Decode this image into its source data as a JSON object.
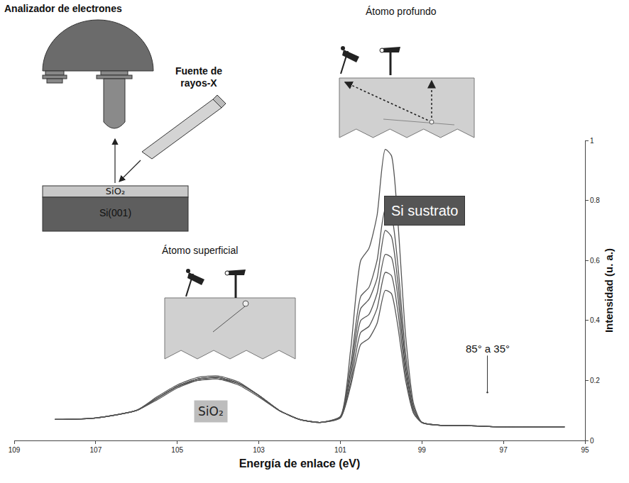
{
  "chart_data": {
    "type": "line",
    "x_label": "Energía de enlace (eV)",
    "y_label": "Intensidad (u. a.)",
    "x": [
      108,
      107,
      106,
      105.5,
      105,
      104.5,
      104,
      103.5,
      103,
      102.5,
      102,
      101.5,
      101,
      100.75,
      100.5,
      100.3,
      100.1,
      99.9,
      99.75,
      99.6,
      99.4,
      99.2,
      99,
      98.5,
      98,
      97,
      96,
      95.5
    ],
    "series": [
      {
        "values": [
          0.07,
          0.075,
          0.1,
          0.14,
          0.18,
          0.205,
          0.21,
          0.19,
          0.15,
          0.1,
          0.07,
          0.06,
          0.08,
          0.3,
          0.6,
          0.64,
          0.75,
          0.97,
          0.95,
          0.75,
          0.35,
          0.12,
          0.06,
          0.05,
          0.05,
          0.045,
          0.045,
          0.045
        ]
      },
      {
        "values": [
          0.07,
          0.075,
          0.1,
          0.145,
          0.185,
          0.21,
          0.215,
          0.195,
          0.15,
          0.1,
          0.07,
          0.06,
          0.08,
          0.25,
          0.48,
          0.51,
          0.6,
          0.77,
          0.75,
          0.6,
          0.29,
          0.11,
          0.06,
          0.05,
          0.05,
          0.045,
          0.045,
          0.045
        ]
      },
      {
        "values": [
          0.07,
          0.075,
          0.1,
          0.14,
          0.18,
          0.205,
          0.21,
          0.19,
          0.15,
          0.1,
          0.07,
          0.06,
          0.078,
          0.23,
          0.44,
          0.47,
          0.54,
          0.7,
          0.68,
          0.54,
          0.26,
          0.1,
          0.06,
          0.05,
          0.05,
          0.045,
          0.045,
          0.045
        ]
      },
      {
        "values": [
          0.07,
          0.075,
          0.1,
          0.135,
          0.175,
          0.2,
          0.205,
          0.185,
          0.145,
          0.1,
          0.07,
          0.06,
          0.077,
          0.21,
          0.4,
          0.42,
          0.49,
          0.62,
          0.61,
          0.49,
          0.24,
          0.1,
          0.06,
          0.05,
          0.05,
          0.045,
          0.045,
          0.045
        ]
      },
      {
        "values": [
          0.07,
          0.075,
          0.1,
          0.14,
          0.18,
          0.205,
          0.21,
          0.19,
          0.15,
          0.1,
          0.07,
          0.06,
          0.076,
          0.19,
          0.36,
          0.38,
          0.44,
          0.56,
          0.55,
          0.44,
          0.22,
          0.09,
          0.06,
          0.05,
          0.05,
          0.045,
          0.045,
          0.045
        ]
      },
      {
        "values": [
          0.07,
          0.075,
          0.1,
          0.14,
          0.18,
          0.2,
          0.205,
          0.19,
          0.15,
          0.1,
          0.07,
          0.06,
          0.075,
          0.18,
          0.32,
          0.34,
          0.39,
          0.5,
          0.49,
          0.39,
          0.2,
          0.09,
          0.06,
          0.05,
          0.05,
          0.045,
          0.045,
          0.045
        ]
      }
    ],
    "color": "#555555",
    "xlim": [
      109,
      95
    ],
    "xticks": [
      109,
      107,
      105,
      103,
      101,
      99,
      97,
      95
    ],
    "ylim": [
      0,
      1
    ],
    "yticks": [
      0,
      0.2,
      0.4,
      0.6,
      0.8,
      1
    ],
    "grid": false,
    "annotations": [
      "SiO₂",
      "Si sustrato",
      "85° a 35°"
    ]
  },
  "diagram": {
    "analyzer": "Analizador de electrones",
    "source": "Fuente de rayos-X",
    "layers": [
      "SiO₂",
      "Si(001)"
    ],
    "surface_atom": "Átomo superficial",
    "deep_atom": "Átomo profundo"
  }
}
